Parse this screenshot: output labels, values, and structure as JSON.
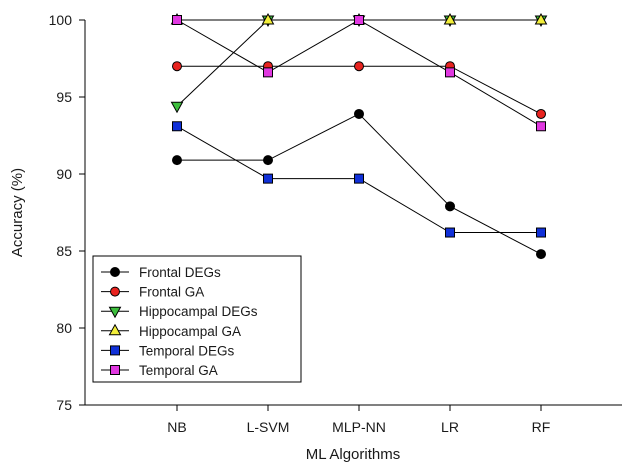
{
  "chart_data": {
    "type": "line",
    "title": "",
    "xlabel": "ML Algorithms",
    "ylabel": "Accuracy (%)",
    "categories": [
      "NB",
      "L-SVM",
      "MLP-NN",
      "LR",
      "RF"
    ],
    "ylim": [
      75,
      100
    ],
    "yticks": [
      "75",
      "80",
      "85",
      "90",
      "95",
      "100"
    ],
    "grid": false,
    "legend_position": "bottom-left",
    "series": [
      {
        "name": "Frontal DEGs",
        "marker": "circle",
        "color": "#000000",
        "values": [
          90.9,
          90.9,
          93.9,
          87.9,
          84.8
        ]
      },
      {
        "name": "Frontal GA",
        "marker": "circle",
        "color": "#e8231f",
        "values": [
          97.0,
          97.0,
          97.0,
          97.0,
          93.9
        ]
      },
      {
        "name": "Hippocampal DEGs",
        "marker": "triangle-down",
        "color": "#3dbf3d",
        "values": [
          94.4,
          100,
          100,
          100,
          100
        ]
      },
      {
        "name": "Hippocampal GA",
        "marker": "triangle-up",
        "color": "#f2ee3a",
        "values": [
          100,
          100,
          100,
          100,
          100
        ]
      },
      {
        "name": "Temporal DEGs",
        "marker": "square",
        "color": "#1030d8",
        "values": [
          93.1,
          89.7,
          89.7,
          86.2,
          86.2
        ]
      },
      {
        "name": "Temporal GA",
        "marker": "square",
        "color": "#e038e0",
        "values": [
          100,
          96.6,
          100,
          96.6,
          93.1
        ]
      }
    ]
  }
}
